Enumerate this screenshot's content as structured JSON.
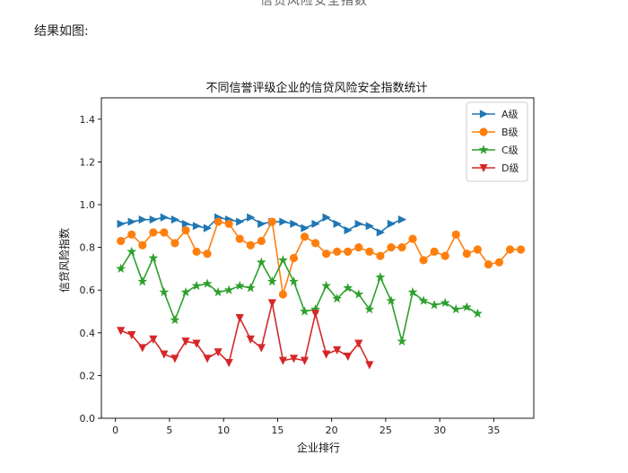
{
  "document": {
    "cut_heading": "信贷风险安全指数",
    "intro_text": "结果如图:"
  },
  "chart_data": {
    "type": "line",
    "title": "不同信誉评级企业的信贷风险安全指数统计",
    "xlabel": "企业排行",
    "ylabel": "信贷风险指数",
    "xlim": [
      -1.3,
      38.7
    ],
    "ylim": [
      0,
      1.5
    ],
    "xticks": [
      0,
      5,
      10,
      15,
      20,
      25,
      30,
      35
    ],
    "yticks": [
      0.0,
      0.2,
      0.4,
      0.6,
      0.8,
      1.0,
      1.2,
      1.4
    ],
    "ytick_labels": [
      "0.0",
      "0.2",
      "0.4",
      "0.6",
      "0.8",
      "1.0",
      "1.2",
      "1.4"
    ],
    "grid": false,
    "legend_position": "top-right",
    "series": [
      {
        "name": "A级",
        "color": "#1f77b4",
        "marker": "triangle-right",
        "x": [
          0.5,
          1.5,
          2.5,
          3.5,
          4.5,
          5.5,
          6.5,
          7.5,
          8.5,
          9.5,
          10.5,
          11.5,
          12.5,
          13.5,
          14.5,
          15.5,
          16.5,
          17.5,
          18.5,
          19.5,
          20.5,
          21.5,
          22.5,
          23.5,
          24.5,
          25.5,
          26.5
        ],
        "values": [
          0.91,
          0.92,
          0.93,
          0.93,
          0.94,
          0.93,
          0.91,
          0.9,
          0.89,
          0.94,
          0.93,
          0.92,
          0.94,
          0.91,
          0.92,
          0.92,
          0.91,
          0.89,
          0.91,
          0.94,
          0.91,
          0.88,
          0.91,
          0.9,
          0.87,
          0.91,
          0.93
        ]
      },
      {
        "name": "B级",
        "color": "#ff7f0e",
        "marker": "circle",
        "x": [
          0.5,
          1.5,
          2.5,
          3.5,
          4.5,
          5.5,
          6.5,
          7.5,
          8.5,
          9.5,
          10.5,
          11.5,
          12.5,
          13.5,
          14.5,
          15.5,
          16.5,
          17.5,
          18.5,
          19.5,
          20.5,
          21.5,
          22.5,
          23.5,
          24.5,
          25.5,
          26.5,
          27.5,
          28.5,
          29.5,
          30.5,
          31.5,
          32.5,
          33.5,
          34.5,
          35.5,
          36.5,
          37.5
        ],
        "values": [
          0.83,
          0.86,
          0.81,
          0.87,
          0.87,
          0.82,
          0.88,
          0.78,
          0.77,
          0.92,
          0.91,
          0.84,
          0.81,
          0.83,
          0.92,
          0.58,
          0.75,
          0.85,
          0.82,
          0.77,
          0.78,
          0.78,
          0.8,
          0.78,
          0.76,
          0.8,
          0.8,
          0.84,
          0.74,
          0.78,
          0.76,
          0.86,
          0.77,
          0.79,
          0.72,
          0.73,
          0.79,
          0.79
        ]
      },
      {
        "name": "C级",
        "color": "#2ca02c",
        "marker": "star",
        "x": [
          0.5,
          1.5,
          2.5,
          3.5,
          4.5,
          5.5,
          6.5,
          7.5,
          8.5,
          9.5,
          10.5,
          11.5,
          12.5,
          13.5,
          14.5,
          15.5,
          16.5,
          17.5,
          18.5,
          19.5,
          20.5,
          21.5,
          22.5,
          23.5,
          24.5,
          25.5,
          26.5,
          27.5,
          28.5,
          29.5,
          30.5,
          31.5,
          32.5,
          33.5
        ],
        "values": [
          0.7,
          0.78,
          0.64,
          0.75,
          0.59,
          0.46,
          0.59,
          0.62,
          0.63,
          0.59,
          0.6,
          0.62,
          0.61,
          0.73,
          0.64,
          0.74,
          0.64,
          0.5,
          0.51,
          0.62,
          0.56,
          0.61,
          0.58,
          0.51,
          0.66,
          0.55,
          0.36,
          0.59,
          0.55,
          0.53,
          0.54,
          0.51,
          0.52,
          0.49
        ]
      },
      {
        "name": "D级",
        "color": "#d62728",
        "marker": "triangle-down",
        "x": [
          0.5,
          1.5,
          2.5,
          3.5,
          4.5,
          5.5,
          6.5,
          7.5,
          8.5,
          9.5,
          10.5,
          11.5,
          12.5,
          13.5,
          14.5,
          15.5,
          16.5,
          17.5,
          18.5,
          19.5,
          20.5,
          21.5,
          22.5,
          23.5
        ],
        "values": [
          0.41,
          0.39,
          0.33,
          0.37,
          0.3,
          0.28,
          0.36,
          0.35,
          0.28,
          0.31,
          0.26,
          0.47,
          0.37,
          0.33,
          0.54,
          0.27,
          0.28,
          0.27,
          0.49,
          0.3,
          0.32,
          0.29,
          0.35,
          0.25
        ]
      }
    ]
  }
}
